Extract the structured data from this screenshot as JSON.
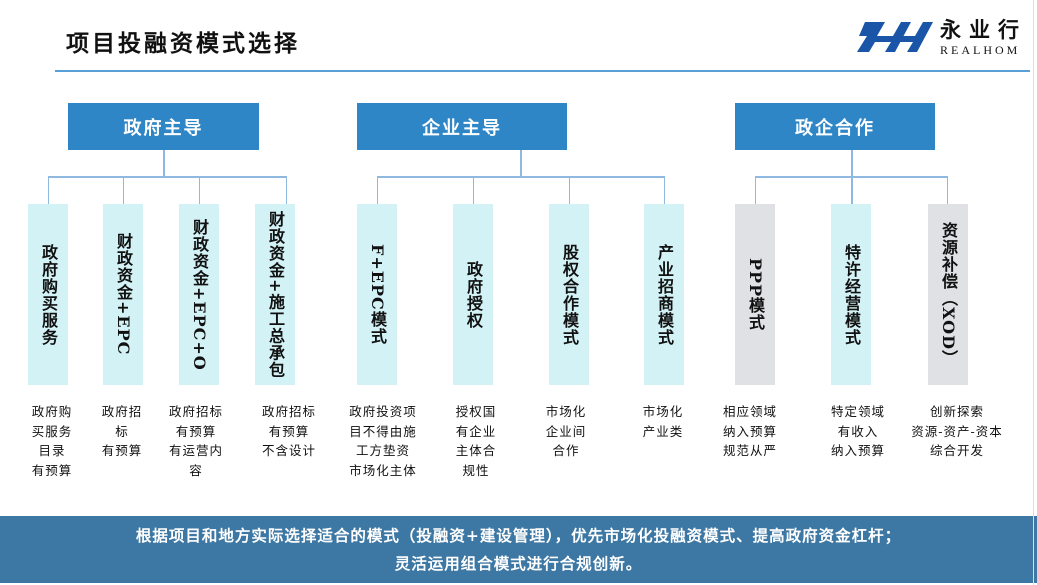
{
  "title": "项目投融资模式选择",
  "logo": {
    "cn": "永业行",
    "en": "REALHOM",
    "color": "#1a55a8"
  },
  "colors": {
    "header": "#2f86c6",
    "box_light": "#d3f2f6",
    "box_grey": "#dfe1e4",
    "banner": "#3d77a3"
  },
  "groups": [
    {
      "label": "政府主导",
      "items": [
        {
          "name": "政府购买服务",
          "desc": "政府购\n买服务\n目录\n有预算"
        },
        {
          "name": "财政资金+EPC",
          "desc": "政府招\n标\n有预算"
        },
        {
          "name": "财政资金+EPC+O",
          "desc": "政府招标\n有预算\n有运营内\n容"
        },
        {
          "name": "财政资金+施工总承包",
          "desc": "政府招标\n有预算\n不含设计"
        }
      ]
    },
    {
      "label": "企业主导",
      "items": [
        {
          "name": "F+EPC模式",
          "desc": "政府投资项\n目不得由施\n工方垫资\n市场化主体"
        },
        {
          "name": "政府授权",
          "desc": "授权国\n有企业\n主体合\n规性"
        },
        {
          "name": "股权合作模式",
          "desc": "市场化\n企业间\n合作"
        },
        {
          "name": "产业招商模式",
          "desc": "市场化\n产业类"
        }
      ]
    },
    {
      "label": "政企合作",
      "items": [
        {
          "name": "PPP模式",
          "desc": "相应领域\n纳入预算\n规范从严"
        },
        {
          "name": "特许经营模式",
          "desc": "特定领域\n有收入\n纳入预算"
        },
        {
          "name": "资源补偿（XOD）",
          "desc": "创新探索\n资源-资产-资本\n综合开发"
        }
      ]
    }
  ],
  "banner": {
    "line1": "根据项目和地方实际选择适合的模式（投融资+建设管理），优先市场化投融资模式、提高政府资金杠杆；",
    "line2": "灵活运用组合模式进行合规创新。"
  }
}
